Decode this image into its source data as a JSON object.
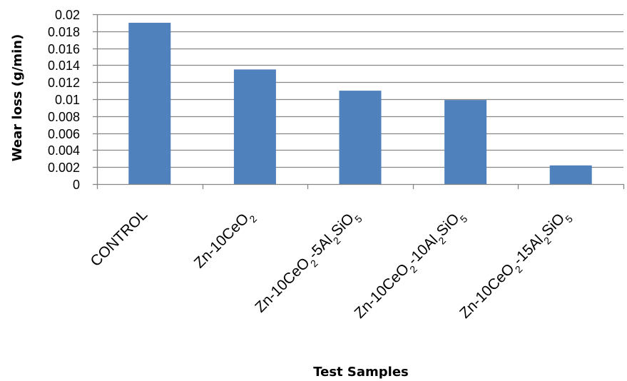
{
  "chart_data": {
    "type": "bar",
    "title": "",
    "xlabel": "Test Samples",
    "ylabel": "Wear loss (g/min)",
    "ylim": [
      0,
      0.02
    ],
    "y_ticks": [
      "0",
      "0.002",
      "0.004",
      "0.006",
      "0.008",
      "0.01",
      "0.012",
      "0.014",
      "0.016",
      "0.018",
      "0.02"
    ],
    "grid": true,
    "legend": "none",
    "categories": [
      "CONTROL",
      "Zn-10CeO2",
      "Zn-10CeO2-5Al2SiO5",
      "Zn-10CeO2-10Al2SiO5",
      "Zn-10CeO2-15Al2SiO5"
    ],
    "category_parts": [
      [
        {
          "t": "CONTROL"
        }
      ],
      [
        {
          "t": "Zn-10CeO"
        },
        {
          "t": "2",
          "sub": true
        }
      ],
      [
        {
          "t": "Zn-10CeO"
        },
        {
          "t": "2",
          "sub": true
        },
        {
          "t": "-5Al"
        },
        {
          "t": "2",
          "sub": true
        },
        {
          "t": "SiO"
        },
        {
          "t": "5",
          "sub": true
        }
      ],
      [
        {
          "t": "Zn-10CeO"
        },
        {
          "t": "2",
          "sub": true
        },
        {
          "t": "-10Al"
        },
        {
          "t": "2",
          "sub": true
        },
        {
          "t": "SiO"
        },
        {
          "t": "5",
          "sub": true
        }
      ],
      [
        {
          "t": "Zn-10CeO"
        },
        {
          "t": "2",
          "sub": true
        },
        {
          "t": "-15Al"
        },
        {
          "t": "2",
          "sub": true
        },
        {
          "t": "SiO"
        },
        {
          "t": "5",
          "sub": true
        }
      ]
    ],
    "values": [
      0.019,
      0.0135,
      0.011,
      0.0099,
      0.0022
    ],
    "bar_color": "#4f81bd",
    "grid_color": "#878787",
    "axis_color": "#868686"
  }
}
